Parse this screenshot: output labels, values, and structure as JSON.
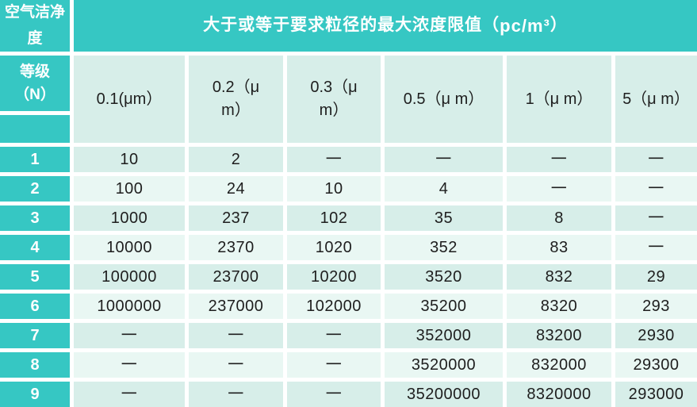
{
  "header": {
    "corner_title": "空气洁净度",
    "main_title_prefix": "大于或等于要求粒径的最大浓度限值（",
    "main_title_unit": "pc/m³",
    "main_title_suffix": "）",
    "level_label": "等级（N）"
  },
  "chart_data": {
    "type": "table",
    "title": "大于或等于要求粒径的最大浓度限值（pc/m³）",
    "corner_header": "空气洁净度等级（N）",
    "empty_cell_marker": "一",
    "columns": [
      "0.1(μm）",
      "0.2（μ m）",
      "0.3（μ m）",
      "0.5（μ m）",
      "1（μ m）",
      "5（μ m）"
    ],
    "rows": [
      {
        "level": "1",
        "values": [
          "10",
          "2",
          "一",
          "一",
          "一",
          "一"
        ]
      },
      {
        "level": "2",
        "values": [
          "100",
          "24",
          "10",
          "4",
          "一",
          "一"
        ]
      },
      {
        "level": "3",
        "values": [
          "1000",
          "237",
          "102",
          "35",
          "8",
          "一"
        ]
      },
      {
        "level": "4",
        "values": [
          "10000",
          "2370",
          "1020",
          "352",
          "83",
          "一"
        ]
      },
      {
        "level": "5",
        "values": [
          "100000",
          "23700",
          "10200",
          "3520",
          "832",
          "29"
        ]
      },
      {
        "level": "6",
        "values": [
          "1000000",
          "237000",
          "102000",
          "35200",
          "8320",
          "293"
        ]
      },
      {
        "level": "7",
        "values": [
          "一",
          "一",
          "一",
          "352000",
          "83200",
          "2930"
        ]
      },
      {
        "level": "8",
        "values": [
          "一",
          "一",
          "一",
          "3520000",
          "832000",
          "29300"
        ]
      },
      {
        "level": "9",
        "values": [
          "一",
          "一",
          "一",
          "35200000",
          "8320000",
          "293000"
        ]
      }
    ]
  },
  "colors": {
    "teal": "#36C7C3",
    "cell_shade_a": "#D7EEE9",
    "cell_shade_b": "#E9F7F3",
    "gridline": "#FFFFFF",
    "text_dark": "#1E1E1E",
    "text_light": "#FFFFFF"
  }
}
